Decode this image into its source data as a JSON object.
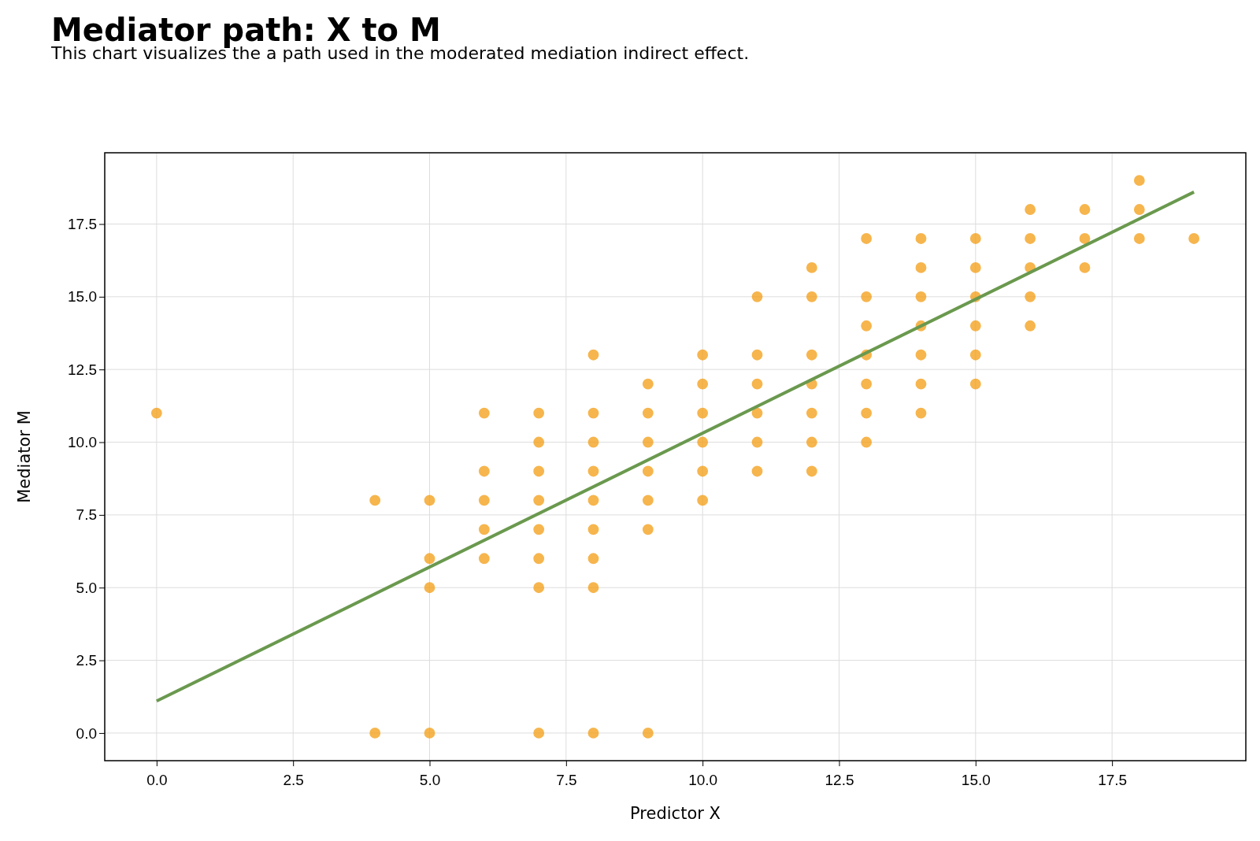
{
  "chart_data": {
    "type": "scatter",
    "title": "Mediator path: X to M",
    "subtitle": "This chart visualizes the a path used in the moderated mediation indirect effect.",
    "xlabel": "Predictor X",
    "ylabel": "Mediator M",
    "xlim": [
      -0.95,
      19.95
    ],
    "ylim": [
      -0.95,
      19.95
    ],
    "xticks": [
      {
        "value": 0,
        "label": "0.0"
      },
      {
        "value": 2.5,
        "label": "2.5"
      },
      {
        "value": 5,
        "label": "5.0"
      },
      {
        "value": 7.5,
        "label": "7.5"
      },
      {
        "value": 10,
        "label": "10.0"
      },
      {
        "value": 12.5,
        "label": "12.5"
      },
      {
        "value": 15,
        "label": "15.0"
      },
      {
        "value": 17.5,
        "label": "17.5"
      }
    ],
    "yticks": [
      {
        "value": 0,
        "label": "0.0"
      },
      {
        "value": 2.5,
        "label": "2.5"
      },
      {
        "value": 5,
        "label": "5.0"
      },
      {
        "value": 7.5,
        "label": "7.5"
      },
      {
        "value": 10,
        "label": "10.0"
      },
      {
        "value": 12.5,
        "label": "12.5"
      },
      {
        "value": 15,
        "label": "15.0"
      },
      {
        "value": 17.5,
        "label": "17.5"
      }
    ],
    "grid": true,
    "marker": "circle",
    "series": [
      {
        "color": "#f39c12",
        "x": [
          0,
          4,
          4,
          5,
          5,
          5,
          5,
          6,
          6,
          6,
          6,
          6,
          7,
          7,
          7,
          7,
          7,
          7,
          7,
          7,
          8,
          8,
          8,
          8,
          8,
          8,
          8,
          8,
          8,
          9,
          9,
          9,
          9,
          9,
          9,
          9,
          10,
          10,
          10,
          10,
          10,
          10,
          11,
          11,
          11,
          11,
          11,
          11,
          12,
          12,
          12,
          12,
          12,
          12,
          12,
          13,
          13,
          13,
          13,
          13,
          13,
          13,
          14,
          14,
          14,
          14,
          14,
          14,
          14,
          15,
          15,
          15,
          15,
          15,
          15,
          16,
          16,
          16,
          16,
          16,
          17,
          17,
          17,
          18,
          18,
          18,
          19
        ],
        "values": [
          11,
          8,
          0,
          8,
          6,
          5,
          0,
          11,
          9,
          8,
          7,
          6,
          11,
          10,
          9,
          8,
          7,
          6,
          5,
          0,
          13,
          11,
          10,
          9,
          8,
          7,
          6,
          5,
          0,
          12,
          11,
          10,
          9,
          8,
          7,
          0,
          13,
          12,
          11,
          10,
          9,
          8,
          15,
          13,
          12,
          11,
          10,
          9,
          16,
          15,
          13,
          12,
          11,
          10,
          9,
          17,
          15,
          14,
          13,
          12,
          11,
          10,
          17,
          16,
          15,
          14,
          13,
          12,
          11,
          17,
          16,
          15,
          14,
          13,
          12,
          18,
          17,
          16,
          15,
          14,
          18,
          17,
          16,
          19,
          18,
          17,
          17
        ]
      },
      {
        "type": "line",
        "color": "#6a994e",
        "x": [
          0,
          19
        ],
        "values": [
          1.1,
          18.6
        ],
        "marker": "none",
        "line_style": "solid"
      }
    ]
  }
}
